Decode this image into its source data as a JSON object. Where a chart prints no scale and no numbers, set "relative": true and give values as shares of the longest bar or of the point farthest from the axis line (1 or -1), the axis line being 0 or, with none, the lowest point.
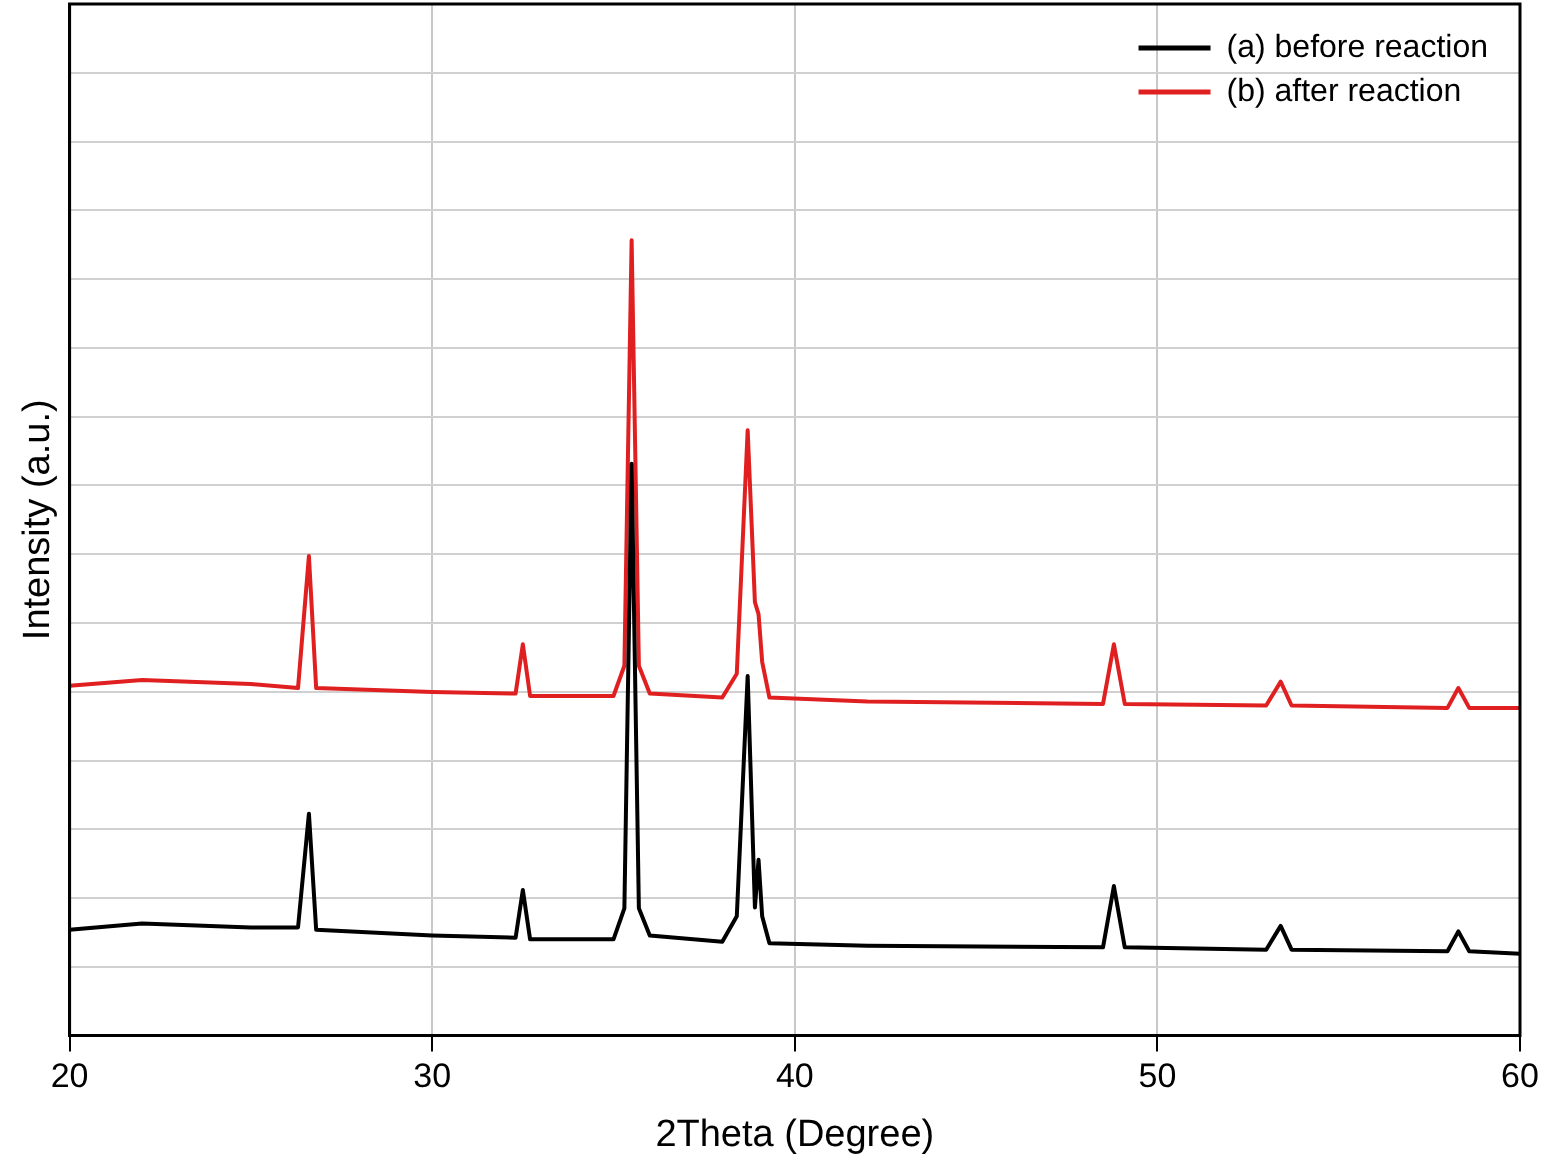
{
  "chart_data": {
    "type": "line",
    "xlabel": "2Theta (Degree)",
    "ylabel": "Intensity (a.u.)",
    "relative": true,
    "xlim": [
      20,
      60
    ],
    "xticks": [
      20,
      30,
      40,
      50,
      60
    ],
    "grid": true,
    "legend": "top right",
    "marker": "none",
    "line_style": "solid",
    "series": [
      {
        "name": "(a) before reaction",
        "color": "#000000",
        "x": [
          20,
          22,
          25,
          26.3,
          26.6,
          26.8,
          30,
          32.3,
          32.5,
          32.7,
          35.0,
          35.3,
          35.5,
          35.7,
          36.0,
          38.0,
          38.4,
          38.7,
          38.9,
          39.0,
          39.1,
          39.3,
          42,
          48.5,
          48.8,
          49.1,
          53.0,
          53.4,
          53.7,
          58.0,
          58.3,
          58.6,
          60
        ],
        "values": [
          0.133,
          0.141,
          0.136,
          0.136,
          0.279,
          0.133,
          0.126,
          0.123,
          0.183,
          0.121,
          0.121,
          0.16,
          0.719,
          0.16,
          0.126,
          0.118,
          0.15,
          0.452,
          0.161,
          0.221,
          0.15,
          0.116,
          0.113,
          0.111,
          0.188,
          0.111,
          0.108,
          0.138,
          0.108,
          0.106,
          0.131,
          0.106,
          0.103
        ]
      },
      {
        "name": "(b) after reaction",
        "color": "#e02020",
        "x": [
          20,
          22,
          25,
          26.3,
          26.6,
          26.8,
          30,
          32.3,
          32.5,
          32.7,
          35.0,
          35.3,
          35.5,
          35.7,
          36.0,
          38.0,
          38.4,
          38.7,
          38.9,
          39.0,
          39.1,
          39.3,
          42,
          48.5,
          48.8,
          49.1,
          53.0,
          53.4,
          53.7,
          58.0,
          58.3,
          58.6,
          60
        ],
        "values": [
          0.44,
          0.447,
          0.442,
          0.437,
          0.603,
          0.437,
          0.432,
          0.43,
          0.492,
          0.427,
          0.427,
          0.465,
          1.0,
          0.465,
          0.43,
          0.425,
          0.455,
          0.761,
          0.545,
          0.53,
          0.47,
          0.425,
          0.42,
          0.417,
          0.492,
          0.417,
          0.415,
          0.445,
          0.415,
          0.412,
          0.437,
          0.412,
          0.412
        ]
      }
    ]
  }
}
